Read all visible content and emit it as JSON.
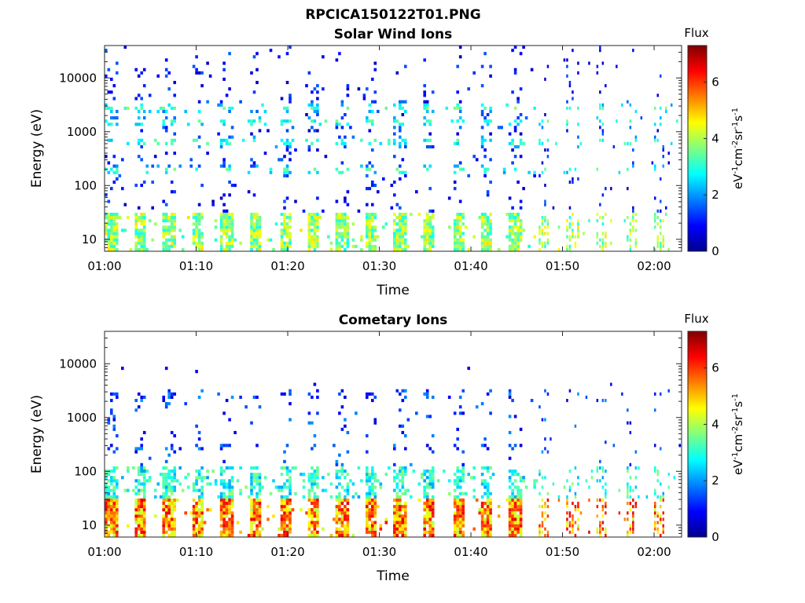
{
  "figure_title": "RPCICA150122T01.PNG",
  "chart_data": [
    {
      "type": "heatmap",
      "title": "Solar Wind Ions",
      "xlabel": "Time",
      "ylabel": "Energy (eV)",
      "y_scale": "log",
      "ylim": [
        6,
        40000
      ],
      "xlim": [
        "01:00",
        "02:03"
      ],
      "x_tick_labels": [
        "01:00",
        "01:10",
        "01:20",
        "01:30",
        "01:40",
        "01:50",
        "02:00"
      ],
      "y_tick_labels": [
        "10",
        "100",
        "1000",
        "10000"
      ],
      "colorbar": {
        "title": "Flux",
        "label": "eV^-1 cm^-2 sr^-1 s^-1",
        "range": [
          0,
          7.3
        ],
        "tick_labels": [
          "0",
          "2",
          "4",
          "6"
        ],
        "colormap": "jet"
      },
      "data_summary": {
        "peak_energy_bands_eV": [
          13,
          20,
          180,
          600,
          1400,
          2600
        ],
        "typical_flux_low_energy": 3.5,
        "typical_flux_mid_energy": 3.0,
        "typical_flux_high_energy": 1.0
      }
    },
    {
      "type": "heatmap",
      "title": "Cometary Ions",
      "xlabel": "Time",
      "ylabel": "Energy (eV)",
      "y_scale": "log",
      "ylim": [
        6,
        40000
      ],
      "xlim": [
        "01:00",
        "02:03"
      ],
      "x_tick_labels": [
        "01:00",
        "01:10",
        "01:20",
        "01:30",
        "01:40",
        "01:50",
        "02:00"
      ],
      "y_tick_labels": [
        "10",
        "100",
        "1000",
        "10000"
      ],
      "colorbar": {
        "title": "Flux",
        "label": "eV^-1 cm^-2 sr^-1 s^-1",
        "range": [
          0,
          7.3
        ],
        "tick_labels": [
          "0",
          "2",
          "4",
          "6"
        ],
        "colormap": "jet"
      },
      "data_summary": {
        "peak_energy_bands_eV": [
          10,
          18,
          50,
          80,
          250,
          2500
        ],
        "typical_flux_low_energy": 5.5,
        "typical_flux_mid_energy": 3.0,
        "typical_flux_high_energy": 1.0
      }
    }
  ]
}
